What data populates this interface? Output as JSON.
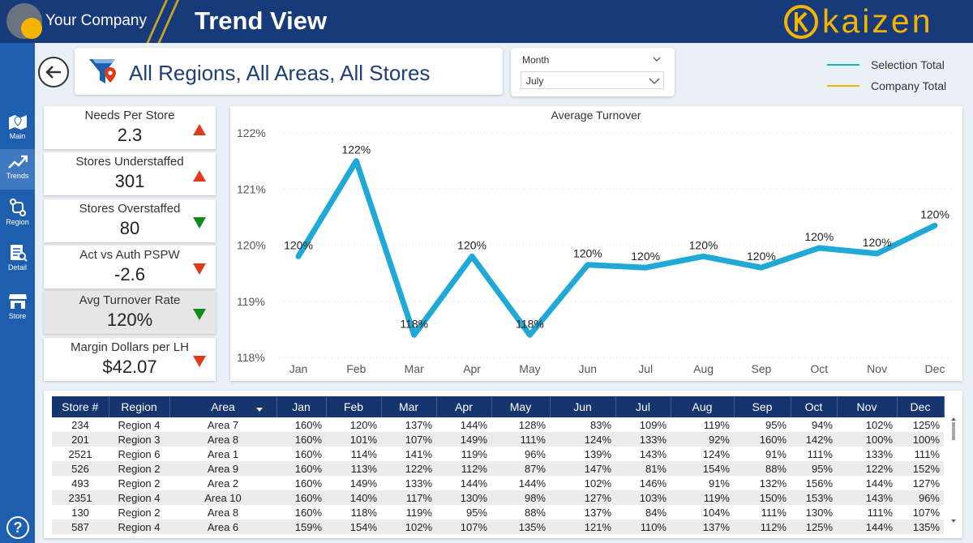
{
  "header": {
    "company": "Your Company",
    "title": "Trend View",
    "brand": "kaizen"
  },
  "sidebar": {
    "items": [
      {
        "label": "Main",
        "icon": "map-icon"
      },
      {
        "label": "Trends",
        "icon": "trend-icon"
      },
      {
        "label": "Region",
        "icon": "region-icon"
      },
      {
        "label": "Detail",
        "icon": "detail-icon"
      },
      {
        "label": "Store",
        "icon": "store-icon"
      }
    ],
    "help": "?"
  },
  "filter": {
    "text": "All Regions, All Areas, All Stores"
  },
  "month_filter": {
    "title": "Month",
    "value": "July"
  },
  "legend": [
    {
      "label": "Selection Total",
      "color": "#1fa9d6"
    },
    {
      "label": "Company Total",
      "color": "#f5b400"
    }
  ],
  "kpis": [
    {
      "label": "Needs Per Store",
      "value": "2.3",
      "direction": "up",
      "color": "#e03a1e"
    },
    {
      "label": "Stores Understaffed",
      "value": "301",
      "direction": "up",
      "color": "#e03a1e"
    },
    {
      "label": "Stores Overstaffed",
      "value": "80",
      "direction": "down",
      "color": "#118a1b"
    },
    {
      "label": "Act vs Auth PSPW",
      "value": "-2.6",
      "direction": "down",
      "color": "#e03a1e"
    },
    {
      "label": "Avg Turnover Rate",
      "value": "120%",
      "direction": "down",
      "color": "#118a1b"
    },
    {
      "label": "Margin Dollars per LH",
      "value": "$42.07",
      "direction": "down",
      "color": "#e03a1e"
    }
  ],
  "chart_data": {
    "type": "line",
    "title": "Average Turnover",
    "categories": [
      "Jan",
      "Feb",
      "Mar",
      "Apr",
      "May",
      "Jun",
      "Jul",
      "Aug",
      "Sep",
      "Oct",
      "Nov",
      "Dec"
    ],
    "series": [
      {
        "name": "Selection Total",
        "color": "#1fa9d6",
        "values": [
          119.8,
          121.5,
          118.4,
          119.8,
          118.4,
          119.65,
          119.6,
          119.8,
          119.6,
          119.95,
          119.85,
          120.35
        ],
        "labels": [
          "120%",
          "122%",
          "118%",
          "120%",
          "118%",
          "120%",
          "120%",
          "120%",
          "120%",
          "120%",
          "120%",
          "120%"
        ]
      }
    ],
    "y_ticks": [
      "122%",
      "121%",
      "120%",
      "119%",
      "118%"
    ],
    "y_tick_values": [
      122,
      121,
      120,
      119,
      118
    ],
    "ylim": [
      118,
      122
    ],
    "grid": true
  },
  "table": {
    "columns": [
      "Store #",
      "Region",
      "Area",
      "Jan",
      "Feb",
      "Mar",
      "Apr",
      "May",
      "Jun",
      "Jul",
      "Aug",
      "Sep",
      "Oct",
      "Nov",
      "Dec"
    ],
    "rows": [
      [
        "234",
        "Region 4",
        "Area 7",
        "160%",
        "120%",
        "137%",
        "144%",
        "128%",
        "83%",
        "109%",
        "119%",
        "95%",
        "94%",
        "102%",
        "125%"
      ],
      [
        "201",
        "Region 3",
        "Area 8",
        "160%",
        "101%",
        "107%",
        "149%",
        "111%",
        "124%",
        "133%",
        "92%",
        "160%",
        "142%",
        "100%",
        "100%"
      ],
      [
        "2521",
        "Region 6",
        "Area 1",
        "160%",
        "114%",
        "141%",
        "119%",
        "96%",
        "139%",
        "143%",
        "124%",
        "91%",
        "111%",
        "133%",
        "111%"
      ],
      [
        "526",
        "Region 2",
        "Area 9",
        "160%",
        "113%",
        "122%",
        "112%",
        "87%",
        "147%",
        "81%",
        "154%",
        "88%",
        "95%",
        "122%",
        "152%"
      ],
      [
        "493",
        "Region 2",
        "Area 2",
        "160%",
        "149%",
        "133%",
        "144%",
        "144%",
        "102%",
        "146%",
        "91%",
        "132%",
        "156%",
        "144%",
        "127%"
      ],
      [
        "2351",
        "Region 4",
        "Area 10",
        "160%",
        "140%",
        "117%",
        "130%",
        "98%",
        "127%",
        "103%",
        "119%",
        "150%",
        "153%",
        "143%",
        "96%"
      ],
      [
        "130",
        "Region 2",
        "Area 8",
        "160%",
        "118%",
        "119%",
        "95%",
        "88%",
        "137%",
        "84%",
        "104%",
        "111%",
        "130%",
        "111%",
        "107%"
      ],
      [
        "587",
        "Region 4",
        "Area 6",
        "159%",
        "154%",
        "102%",
        "107%",
        "135%",
        "121%",
        "110%",
        "137%",
        "112%",
        "125%",
        "144%",
        "135%"
      ]
    ]
  }
}
